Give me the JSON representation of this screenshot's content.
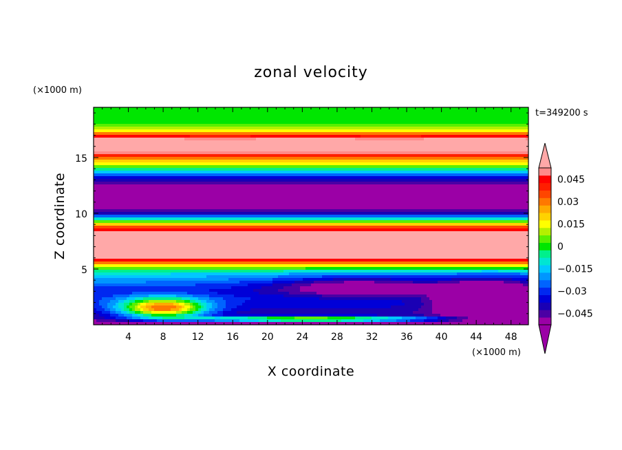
{
  "chart_data": {
    "type": "heatmap",
    "title": "zonal velocity",
    "xlabel": "X coordinate",
    "ylabel": "Z coordinate",
    "x_unit": "(×1000 m)",
    "y_unit": "(×1000 m)",
    "time_label": "t=349200 s",
    "xlim": [
      0,
      50
    ],
    "ylim": [
      0,
      19.5
    ],
    "x_ticks": [
      "4",
      "8",
      "12",
      "16",
      "20",
      "24",
      "28",
      "32",
      "36",
      "40",
      "44",
      "48"
    ],
    "x_tick_values": [
      4,
      8,
      12,
      16,
      20,
      24,
      28,
      32,
      36,
      40,
      44,
      48
    ],
    "y_ticks": [
      "5",
      "10",
      "15"
    ],
    "y_tick_values": [
      5,
      10,
      15
    ],
    "colorbar": {
      "ticks": [
        "0.045",
        "0.03",
        "0.015",
        "0",
        "−0.015",
        "−0.03",
        "−0.045"
      ],
      "tick_values": [
        0.045,
        0.03,
        0.015,
        0,
        -0.015,
        -0.03,
        -0.045
      ],
      "levels": [
        -0.0525,
        -0.0475,
        -0.0425,
        -0.0375,
        -0.0325,
        -0.0275,
        -0.0225,
        -0.0175,
        -0.0125,
        -0.0075,
        -0.0025,
        0.0025,
        0.0075,
        0.0125,
        0.0175,
        0.0225,
        0.0275,
        0.0325,
        0.0375,
        0.0425,
        0.0475,
        0.0525
      ],
      "colors": [
        "#9b00a6",
        "#4b00a4",
        "#1a00b4",
        "#0000d8",
        "#0028f0",
        "#0064ff",
        "#0096ff",
        "#00c8ff",
        "#00e6d2",
        "#00f08c",
        "#00e600",
        "#5af000",
        "#b4f000",
        "#ffff00",
        "#ffd200",
        "#ffaa00",
        "#ff7800",
        "#ff4600",
        "#ff1e00",
        "#ff0000",
        "#ff8a8a"
      ],
      "under_color": "#9b00a6",
      "over_color": "#ffa8a8"
    },
    "vertical_profile": {
      "z": [
        0.0,
        0.6,
        1.2,
        1.8,
        2.4,
        3.0,
        3.6,
        4.2,
        4.6,
        5.0,
        5.4,
        5.8,
        6.2,
        7.0,
        8.0,
        8.6,
        9.0,
        9.5,
        10.0,
        10.4,
        11.0,
        12.0,
        12.6,
        13.2,
        13.6,
        14.0,
        14.5,
        15.0,
        15.5,
        16.0,
        16.5,
        17.0,
        17.3,
        17.6,
        18.0,
        18.5,
        19.0,
        19.5
      ],
      "u": [
        -0.06,
        -0.045,
        -0.04,
        -0.035,
        -0.032,
        -0.035,
        -0.03,
        -0.022,
        -0.015,
        0.0,
        0.02,
        0.045,
        0.06,
        0.06,
        0.06,
        0.045,
        0.02,
        -0.01,
        -0.04,
        -0.05,
        -0.06,
        -0.06,
        -0.048,
        -0.035,
        -0.02,
        -0.005,
        0.015,
        0.035,
        0.05,
        0.06,
        0.06,
        0.04,
        0.02,
        0.01,
        0.002,
        0.0,
        -0.002,
        -0.002
      ]
    },
    "features": [
      {
        "kind": "positive_jet",
        "x_center": 8,
        "z_center": 1.5,
        "x_width": 5,
        "z_width": 0.9,
        "value": 0.07
      },
      {
        "kind": "negative_pool",
        "x_center": 45,
        "z_center": 2.3,
        "x_width": 5,
        "z_width": 1.4,
        "value": -0.06
      },
      {
        "kind": "negative_pool",
        "x_center": 30,
        "z_center": 3.4,
        "x_width": 9,
        "z_width": 0.9,
        "value": -0.025
      },
      {
        "kind": "positive_strip",
        "x_center": 25,
        "z_center": 0.5,
        "x_width": 14,
        "z_width": 0.25,
        "value": 0.06
      }
    ]
  }
}
